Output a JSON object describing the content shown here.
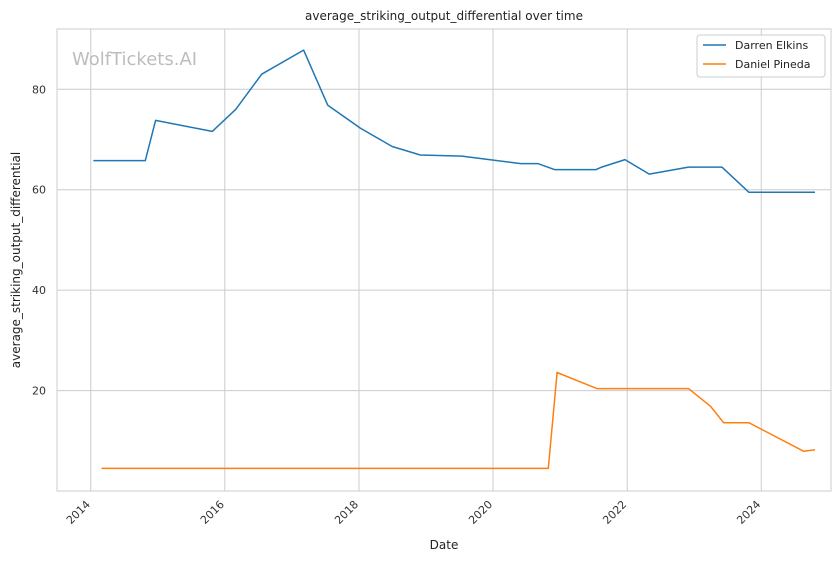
{
  "chart_data": {
    "type": "line",
    "title": "average_striking_output_differential over time",
    "xlabel": "Date",
    "ylabel": "average_striking_output_differential",
    "watermark": "WolfTickets.AI",
    "xlim": [
      "2013-07-01",
      "2025-01-15"
    ],
    "ylim": [
      0,
      92
    ],
    "x_ticks": [
      "2014",
      "2016",
      "2018",
      "2020",
      "2022",
      "2024"
    ],
    "y_ticks": [
      20,
      40,
      60,
      80
    ],
    "grid": true,
    "legend_position": "top-right",
    "series": [
      {
        "name": "Darren Elkins",
        "color": "#1f77b4",
        "points": [
          [
            "2014-01-15",
            65.8
          ],
          [
            "2014-10-25",
            65.8
          ],
          [
            "2014-12-20",
            73.8
          ],
          [
            "2015-10-25",
            71.6
          ],
          [
            "2016-03-01",
            76.0
          ],
          [
            "2016-07-20",
            83.0
          ],
          [
            "2017-03-05",
            87.8
          ],
          [
            "2017-07-15",
            76.8
          ],
          [
            "2018-01-10",
            72.2
          ],
          [
            "2018-07-01",
            68.6
          ],
          [
            "2018-12-01",
            66.9
          ],
          [
            "2019-07-15",
            66.7
          ],
          [
            "2020-06-01",
            65.2
          ],
          [
            "2020-09-01",
            65.2
          ],
          [
            "2020-12-01",
            64.0
          ],
          [
            "2021-07-15",
            64.0
          ],
          [
            "2021-08-15",
            64.5
          ],
          [
            "2021-12-20",
            66.0
          ],
          [
            "2022-05-01",
            63.1
          ],
          [
            "2022-12-01",
            64.5
          ],
          [
            "2023-06-01",
            64.5
          ],
          [
            "2023-10-25",
            59.5
          ],
          [
            "2024-10-20",
            59.5
          ]
        ]
      },
      {
        "name": "Daniel Pineda",
        "color": "#ff7f0e",
        "points": [
          [
            "2014-03-01",
            4.5
          ],
          [
            "2020-10-28",
            4.5
          ],
          [
            "2020-12-15",
            23.6
          ],
          [
            "2021-07-20",
            20.4
          ],
          [
            "2022-12-01",
            20.4
          ],
          [
            "2023-04-01",
            16.8
          ],
          [
            "2023-06-10",
            13.6
          ],
          [
            "2023-10-25",
            13.6
          ],
          [
            "2024-08-20",
            7.9
          ],
          [
            "2024-10-20",
            8.2
          ]
        ]
      }
    ]
  }
}
